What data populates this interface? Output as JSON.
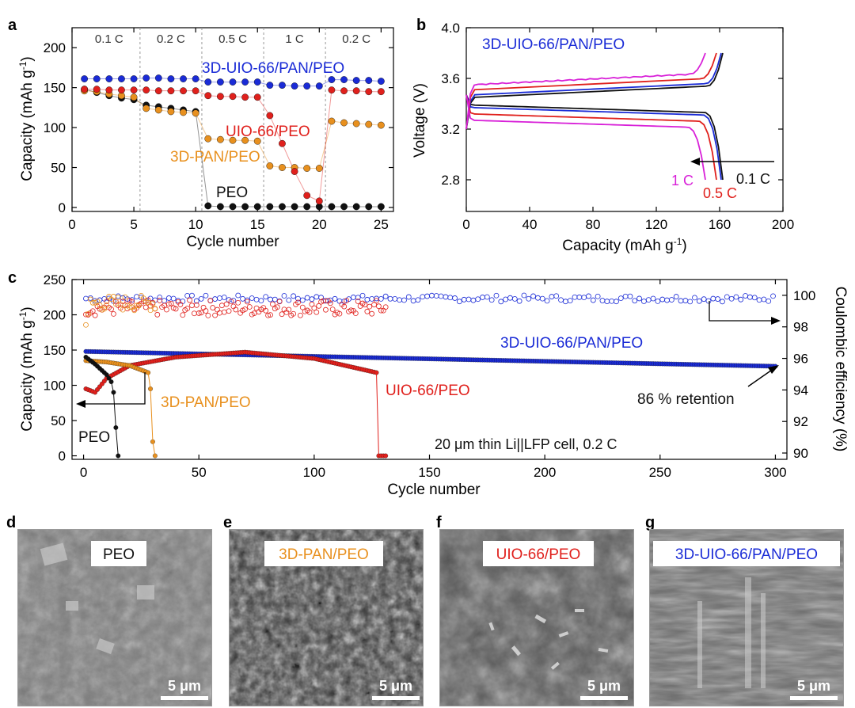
{
  "panels": {
    "a": {
      "letter": "a",
      "xlabel": "Cycle number",
      "ylabel": "Capacity (mAh g",
      "ylabel_sup": "-1",
      "ylabel_close": ")",
      "rate_labels": [
        "0.1 C",
        "0.2 C",
        "0.5 C",
        "1 C",
        "0.2 C"
      ],
      "series_labels": {
        "s3d": "3D-UIO-66/PAN/PEO",
        "uio": "UIO-66/PEO",
        "pan": "3D-PAN/PEO",
        "peo": "PEO"
      }
    },
    "b": {
      "letter": "b",
      "title": "3D-UIO-66/PAN/PEO",
      "xlabel": "Capacity (mAh g",
      "xlabel_sup": "-1",
      "xlabel_close": ")",
      "ylabel": "Voltage (V)",
      "rate_labels": {
        "c01": "0.1 C",
        "c05": "0.5 C",
        "c1": "1 C"
      }
    },
    "c": {
      "letter": "c",
      "xlabel": "Cycle number",
      "ylabel": "Capacity (mAh g",
      "ylabel_sup": "-1",
      "ylabel_close": ")",
      "y2label": "Coulombic efficiency (%)",
      "series_labels": {
        "s3d": "3D-UIO-66/PAN/PEO",
        "uio": "UIO-66/PEO",
        "pan": "3D-PAN/PEO",
        "peo": "PEO"
      },
      "retention": "86 % retention",
      "cell_note": "20 μm thin Li||LFP cell, 0.2 C"
    },
    "d": {
      "letter": "d",
      "label": "PEO",
      "scale": "5 μm"
    },
    "e": {
      "letter": "e",
      "label": "3D-PAN/PEO",
      "scale": "5 μm"
    },
    "f": {
      "letter": "f",
      "label": "UIO-66/PEO",
      "scale": "5 μm"
    },
    "g": {
      "letter": "g",
      "label": "3D-UIO-66/PAN/PEO",
      "scale": "5 μm"
    }
  },
  "colors": {
    "s3d": "#1a2bd6",
    "uio": "#e0201c",
    "pan": "#e8901e",
    "peo": "#111111",
    "c1": "#d820d8"
  },
  "chart_data": [
    {
      "type": "scatter",
      "panel": "a",
      "xlabel": "Cycle number",
      "ylabel": "Capacity (mAh g-1)",
      "xlim": [
        0,
        26
      ],
      "ylim": [
        -5,
        225
      ],
      "xticks": [
        0,
        5,
        10,
        15,
        20,
        25
      ],
      "yticks": [
        0,
        50,
        100,
        150,
        200
      ],
      "rate_segments": [
        "0.1 C",
        "0.2 C",
        "0.5 C",
        "1 C",
        "0.2 C"
      ],
      "x": [
        1,
        2,
        3,
        4,
        5,
        6,
        7,
        8,
        9,
        10,
        11,
        12,
        13,
        14,
        15,
        16,
        17,
        18,
        19,
        20,
        21,
        22,
        23,
        24,
        25
      ],
      "series": [
        {
          "name": "3D-UIO-66/PAN/PEO",
          "key": "s3d",
          "values": [
            161,
            161,
            161,
            161,
            161,
            162,
            162,
            161,
            161,
            161,
            157,
            157,
            157,
            157,
            157,
            153,
            153,
            152,
            152,
            152,
            160,
            160,
            159,
            159,
            158
          ]
        },
        {
          "name": "UIO-66/PEO",
          "key": "uio",
          "values": [
            148,
            148,
            147,
            147,
            147,
            147,
            146,
            146,
            146,
            146,
            140,
            139,
            139,
            138,
            138,
            115,
            80,
            45,
            15,
            8,
            147,
            146,
            146,
            145,
            145
          ]
        },
        {
          "name": "3D-PAN/PEO",
          "key": "pan",
          "values": [
            146,
            145,
            142,
            140,
            138,
            124,
            122,
            120,
            119,
            118,
            86,
            85,
            84,
            84,
            83,
            52,
            50,
            50,
            49,
            49,
            108,
            106,
            105,
            104,
            103
          ]
        },
        {
          "name": "PEO",
          "key": "peo",
          "values": [
            148,
            144,
            140,
            137,
            135,
            128,
            126,
            124,
            122,
            120,
            2,
            1,
            1,
            1,
            1,
            1,
            1,
            1,
            1,
            1,
            1,
            1,
            1,
            1,
            1
          ]
        }
      ]
    },
    {
      "type": "line",
      "panel": "b",
      "title": "3D-UIO-66/PAN/PEO",
      "xlabel": "Capacity (mAh g-1)",
      "ylabel": "Voltage (V)",
      "xlim": [
        0,
        200
      ],
      "ylim": [
        2.55,
        4.0
      ],
      "xticks": [
        0,
        40,
        80,
        120,
        160,
        200
      ],
      "yticks": [
        2.8,
        3.2,
        3.6,
        4.0
      ],
      "series": [
        {
          "name": "0.1 C",
          "key": "peo",
          "charge_plateau": 3.45,
          "discharge_plateau": 3.39,
          "capacity": 162
        },
        {
          "name": "0.2 C",
          "key": "s3d",
          "charge_plateau": 3.47,
          "discharge_plateau": 3.37,
          "capacity": 161
        },
        {
          "name": "0.5 C",
          "key": "uio",
          "charge_plateau": 3.51,
          "discharge_plateau": 3.32,
          "capacity": 158
        },
        {
          "name": "1 C",
          "key": "c1",
          "charge_plateau": 3.55,
          "discharge_plateau": 3.27,
          "capacity": 151
        }
      ]
    },
    {
      "type": "scatter",
      "panel": "c",
      "xlabel": "Cycle number",
      "ylabel": "Capacity (mAh g-1)",
      "y2label": "Coulombic efficiency (%)",
      "xlim": [
        -5,
        305
      ],
      "ylim": [
        -5,
        250
      ],
      "y2lim": [
        89.6,
        101
      ],
      "xticks": [
        0,
        50,
        100,
        150,
        200,
        250,
        300
      ],
      "yticks": [
        0,
        50,
        100,
        150,
        200,
        250
      ],
      "y2ticks": [
        90,
        92,
        94,
        96,
        98,
        100
      ],
      "series": [
        {
          "name": "3D-UIO-66/PAN/PEO",
          "key": "s3d",
          "capacity_start": 148,
          "capacity_end": 127,
          "cycles": 300,
          "ce_mean": 99.8
        },
        {
          "name": "UIO-66/PEO",
          "key": "uio",
          "capacity_points": [
            [
              1,
              95
            ],
            [
              5,
              90
            ],
            [
              10,
              110
            ],
            [
              20,
              128
            ],
            [
              40,
              140
            ],
            [
              70,
              147
            ],
            [
              100,
              138
            ],
            [
              127,
              118
            ],
            [
              128,
              0
            ],
            [
              131,
              0
            ]
          ],
          "ce_mean": 99.2,
          "cycles": 131
        },
        {
          "name": "3D-PAN/PEO",
          "key": "pan",
          "capacity_points": [
            [
              1,
              135
            ],
            [
              10,
              133
            ],
            [
              20,
              128
            ],
            [
              28,
              118
            ],
            [
              29,
              95
            ],
            [
              30,
              20
            ],
            [
              31,
              0
            ]
          ],
          "ce_mean": 99.5,
          "cycles": 31
        },
        {
          "name": "PEO",
          "key": "peo",
          "capacity_points": [
            [
              1,
              140
            ],
            [
              5,
              130
            ],
            [
              10,
              115
            ],
            [
              12,
              105
            ],
            [
              13,
              90
            ],
            [
              14,
              40
            ],
            [
              15,
              0
            ]
          ],
          "cycles": 15
        }
      ],
      "annotation": "86 % retention"
    }
  ]
}
